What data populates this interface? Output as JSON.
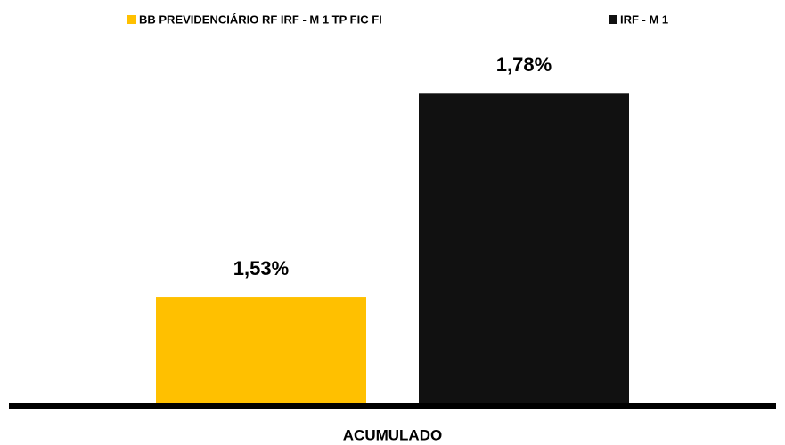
{
  "chart_data": {
    "type": "bar",
    "categories": [
      "ACUMULADO"
    ],
    "series": [
      {
        "name": "BB PREVIDENCIÁRIO RF IRF - M 1 TP FIC FI",
        "color": "#FFC000",
        "values": [
          1.53
        ],
        "value_labels": [
          "1,53%"
        ]
      },
      {
        "name": "IRF - M 1",
        "color": "#111111",
        "values": [
          1.78
        ],
        "value_labels": [
          "1,78%"
        ]
      }
    ],
    "ylim": [
      1.4,
      1.8
    ]
  }
}
